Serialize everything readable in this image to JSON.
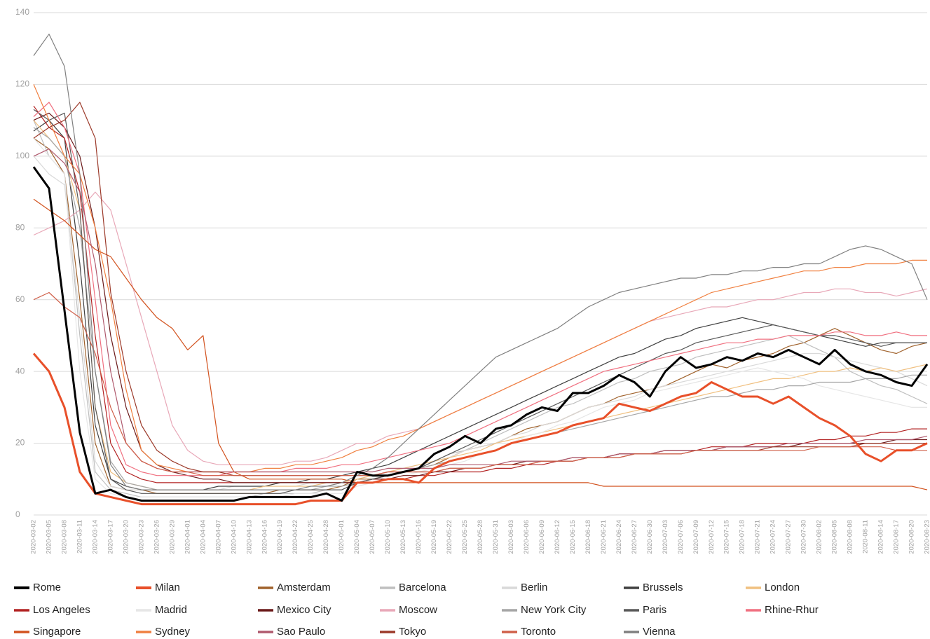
{
  "chart_data": {
    "type": "line",
    "categories": [
      "2020-03-02",
      "2020-03-05",
      "2020-03-08",
      "2020-03-11",
      "2020-03-14",
      "2020-03-17",
      "2020-03-20",
      "2020-03-23",
      "2020-03-26",
      "2020-03-29",
      "2020-04-01",
      "2020-04-04",
      "2020-04-07",
      "2020-04-10",
      "2020-04-13",
      "2020-04-16",
      "2020-04-19",
      "2020-04-22",
      "2020-04-25",
      "2020-04-28",
      "2020-05-01",
      "2020-05-04",
      "2020-05-07",
      "2020-05-10",
      "2020-05-13",
      "2020-05-16",
      "2020-05-19",
      "2020-05-22",
      "2020-05-25",
      "2020-05-28",
      "2020-05-31",
      "2020-06-03",
      "2020-06-06",
      "2020-06-09",
      "2020-06-12",
      "2020-06-15",
      "2020-06-18",
      "2020-06-21",
      "2020-06-24",
      "2020-06-27",
      "2020-06-30",
      "2020-07-03",
      "2020-07-06",
      "2020-07-09",
      "2020-07-12",
      "2020-07-15",
      "2020-07-18",
      "2020-07-21",
      "2020-07-24",
      "2020-07-27",
      "2020-07-30",
      "2020-08-02",
      "2020-08-05",
      "2020-08-08",
      "2020-08-11",
      "2020-08-14",
      "2020-08-17",
      "2020-08-20",
      "2020-08-23"
    ],
    "ylim": [
      0,
      140
    ],
    "yticks": [
      0,
      20,
      40,
      60,
      80,
      100,
      120,
      140
    ],
    "grid": true,
    "series": [
      {
        "name": "Rome",
        "color": "#000000",
        "width": 3,
        "values": [
          97,
          91,
          57,
          23,
          6,
          7,
          5,
          4,
          4,
          4,
          4,
          4,
          4,
          4,
          5,
          5,
          5,
          5,
          5,
          6,
          4,
          12,
          11,
          11,
          12,
          13,
          17,
          19,
          22,
          20,
          24,
          25,
          28,
          30,
          29,
          34,
          34,
          36,
          39,
          37,
          33,
          40,
          44,
          41,
          42,
          44,
          43,
          45,
          44,
          46,
          44,
          42,
          46,
          42,
          40,
          39,
          37,
          36,
          42
        ]
      },
      {
        "name": "Milan",
        "color": "#e8502a",
        "width": 3,
        "values": [
          45,
          40,
          30,
          12,
          6,
          5,
          4,
          3,
          3,
          3,
          3,
          3,
          3,
          3,
          3,
          3,
          3,
          3,
          4,
          4,
          4,
          9,
          9,
          10,
          10,
          9,
          13,
          15,
          16,
          17,
          18,
          20,
          21,
          22,
          23,
          25,
          26,
          27,
          31,
          30,
          29,
          31,
          33,
          34,
          37,
          35,
          33,
          33,
          31,
          33,
          30,
          27,
          25,
          22,
          17,
          15,
          18,
          18,
          20
        ]
      },
      {
        "name": "Amsterdam",
        "color": "#a0622c",
        "values": [
          105,
          102,
          95,
          60,
          20,
          8,
          7,
          7,
          6,
          6,
          6,
          6,
          6,
          6,
          6,
          6,
          7,
          7,
          7,
          7,
          8,
          10,
          10,
          11,
          12,
          13,
          14,
          16,
          18,
          19,
          20,
          22,
          24,
          25,
          26,
          28,
          30,
          31,
          33,
          34,
          35,
          36,
          38,
          40,
          42,
          41,
          43,
          44,
          45,
          47,
          48,
          50,
          52,
          50,
          48,
          46,
          45,
          47,
          48
        ]
      },
      {
        "name": "Barcelona",
        "color": "#bfbfbf",
        "values": [
          110,
          100,
          95,
          50,
          12,
          7,
          6,
          5,
          5,
          5,
          5,
          5,
          5,
          5,
          5,
          6,
          6,
          6,
          6,
          7,
          7,
          9,
          10,
          11,
          12,
          13,
          15,
          17,
          18,
          20,
          22,
          24,
          26,
          28,
          30,
          31,
          33,
          35,
          37,
          38,
          40,
          41,
          42,
          44,
          45,
          46,
          47,
          48,
          49,
          50,
          48,
          46,
          44,
          40,
          38,
          36,
          35,
          33,
          31
        ]
      },
      {
        "name": "Berlin",
        "color": "#d9d9d9",
        "values": [
          100,
          95,
          92,
          55,
          15,
          8,
          7,
          7,
          7,
          7,
          7,
          7,
          7,
          8,
          8,
          8,
          8,
          8,
          9,
          9,
          9,
          10,
          11,
          12,
          13,
          14,
          15,
          16,
          18,
          19,
          20,
          22,
          23,
          25,
          26,
          28,
          30,
          31,
          32,
          33,
          35,
          36,
          37,
          38,
          39,
          40,
          41,
          42,
          43,
          44,
          45,
          45,
          44,
          43,
          42,
          41,
          40,
          38,
          36
        ]
      },
      {
        "name": "Brussels",
        "color": "#404040",
        "values": [
          107,
          110,
          105,
          70,
          25,
          10,
          8,
          7,
          7,
          7,
          7,
          7,
          8,
          8,
          8,
          8,
          9,
          9,
          10,
          10,
          11,
          12,
          13,
          14,
          16,
          18,
          20,
          22,
          24,
          26,
          28,
          30,
          32,
          34,
          36,
          38,
          40,
          42,
          44,
          45,
          47,
          49,
          50,
          52,
          53,
          54,
          55,
          54,
          53,
          52,
          51,
          50,
          49,
          48,
          47,
          48,
          48,
          48,
          48
        ]
      },
      {
        "name": "London",
        "color": "#f0c080",
        "values": [
          110,
          105,
          100,
          85,
          30,
          12,
          9,
          8,
          7,
          7,
          7,
          7,
          7,
          7,
          7,
          8,
          8,
          8,
          8,
          9,
          9,
          10,
          11,
          12,
          13,
          14,
          15,
          16,
          17,
          18,
          20,
          21,
          22,
          23,
          24,
          25,
          26,
          27,
          28,
          29,
          30,
          31,
          32,
          33,
          34,
          35,
          36,
          37,
          38,
          38,
          39,
          40,
          40,
          41,
          40,
          41,
          40,
          41,
          42
        ]
      },
      {
        "name": "Los Angeles",
        "color": "#b22222",
        "values": [
          114,
          108,
          105,
          90,
          50,
          20,
          12,
          10,
          9,
          9,
          9,
          9,
          9,
          9,
          9,
          9,
          9,
          9,
          9,
          9,
          9,
          9,
          10,
          10,
          10,
          11,
          11,
          12,
          12,
          12,
          13,
          13,
          14,
          14,
          15,
          15,
          16,
          16,
          17,
          17,
          17,
          18,
          18,
          18,
          19,
          19,
          19,
          20,
          20,
          20,
          20,
          21,
          21,
          22,
          22,
          23,
          23,
          24,
          24
        ]
      },
      {
        "name": "Madrid",
        "color": "#e6e6e6",
        "values": [
          105,
          100,
          95,
          40,
          10,
          6,
          5,
          5,
          5,
          5,
          5,
          5,
          5,
          5,
          5,
          5,
          5,
          6,
          6,
          6,
          6,
          8,
          9,
          10,
          11,
          12,
          13,
          14,
          15,
          17,
          18,
          20,
          22,
          23,
          25,
          26,
          28,
          30,
          31,
          32,
          34,
          35,
          36,
          37,
          38,
          39,
          40,
          41,
          40,
          39,
          38,
          36,
          35,
          34,
          33,
          32,
          31,
          30,
          30
        ]
      },
      {
        "name": "Mexico City",
        "color": "#6b1a1a",
        "values": [
          110,
          112,
          108,
          100,
          80,
          50,
          30,
          18,
          14,
          12,
          11,
          10,
          10,
          9,
          9,
          9,
          9,
          9,
          9,
          9,
          9,
          9,
          10,
          10,
          11,
          11,
          12,
          12,
          13,
          13,
          14,
          14,
          15,
          15,
          15,
          16,
          16,
          16,
          17,
          17,
          17,
          18,
          18,
          18,
          18,
          19,
          19,
          19,
          19,
          19,
          20,
          20,
          20,
          20,
          20,
          20,
          21,
          21,
          21
        ]
      },
      {
        "name": "Moscow",
        "color": "#e8a8b8",
        "values": [
          78,
          80,
          82,
          85,
          90,
          85,
          70,
          55,
          40,
          25,
          18,
          15,
          14,
          14,
          14,
          14,
          14,
          15,
          15,
          16,
          18,
          20,
          20,
          22,
          23,
          24,
          26,
          28,
          30,
          32,
          34,
          36,
          38,
          40,
          42,
          44,
          46,
          48,
          50,
          52,
          54,
          55,
          56,
          57,
          58,
          58,
          59,
          60,
          60,
          61,
          62,
          62,
          63,
          63,
          62,
          62,
          61,
          62,
          63
        ]
      },
      {
        "name": "New York City",
        "color": "#a6a6a6",
        "values": [
          108,
          105,
          100,
          80,
          40,
          15,
          9,
          8,
          7,
          7,
          7,
          7,
          7,
          7,
          7,
          7,
          7,
          7,
          7,
          8,
          8,
          9,
          10,
          11,
          12,
          13,
          14,
          15,
          16,
          17,
          18,
          20,
          21,
          22,
          23,
          24,
          25,
          26,
          27,
          28,
          29,
          30,
          31,
          32,
          33,
          33,
          34,
          35,
          35,
          36,
          36,
          37,
          37,
          37,
          38,
          38,
          38,
          39,
          39
        ]
      },
      {
        "name": "Paris",
        "color": "#595959",
        "values": [
          113,
          110,
          112,
          85,
          30,
          10,
          7,
          6,
          6,
          6,
          6,
          6,
          6,
          6,
          6,
          6,
          6,
          7,
          7,
          7,
          7,
          9,
          10,
          11,
          12,
          13,
          15,
          17,
          19,
          21,
          23,
          25,
          27,
          29,
          31,
          33,
          35,
          37,
          39,
          41,
          43,
          45,
          46,
          48,
          49,
          50,
          51,
          52,
          53,
          52,
          51,
          50,
          50,
          49,
          48,
          47,
          48,
          48,
          48
        ]
      },
      {
        "name": "Rhine-Rhur",
        "color": "#f07080",
        "values": [
          111,
          115,
          108,
          95,
          60,
          25,
          14,
          12,
          11,
          11,
          11,
          11,
          11,
          12,
          12,
          12,
          12,
          13,
          13,
          13,
          14,
          14,
          15,
          16,
          17,
          18,
          19,
          20,
          22,
          24,
          26,
          28,
          30,
          32,
          34,
          36,
          38,
          40,
          41,
          42,
          43,
          44,
          45,
          46,
          47,
          48,
          48,
          49,
          49,
          50,
          50,
          50,
          51,
          51,
          50,
          50,
          51,
          50,
          50
        ]
      },
      {
        "name": "Singapore",
        "color": "#d2521e",
        "values": [
          88,
          85,
          82,
          78,
          74,
          72,
          66,
          60,
          55,
          52,
          46,
          50,
          20,
          12,
          10,
          10,
          10,
          10,
          10,
          10,
          10,
          9,
          9,
          9,
          9,
          9,
          9,
          9,
          9,
          9,
          9,
          9,
          9,
          9,
          9,
          9,
          9,
          8,
          8,
          8,
          8,
          8,
          8,
          8,
          8,
          8,
          8,
          8,
          8,
          8,
          8,
          8,
          8,
          8,
          8,
          8,
          8,
          8,
          7
        ]
      },
      {
        "name": "Sydney",
        "color": "#f08040",
        "values": [
          120,
          110,
          100,
          95,
          80,
          60,
          35,
          18,
          14,
          13,
          12,
          12,
          12,
          12,
          12,
          13,
          13,
          14,
          14,
          15,
          16,
          18,
          19,
          21,
          22,
          24,
          26,
          28,
          30,
          32,
          34,
          36,
          38,
          40,
          42,
          44,
          46,
          48,
          50,
          52,
          54,
          56,
          58,
          60,
          62,
          63,
          64,
          65,
          66,
          67,
          68,
          68,
          69,
          69,
          70,
          70,
          70,
          71,
          71
        ]
      },
      {
        "name": "Sao Paulo",
        "color": "#b05a6e",
        "values": [
          100,
          102,
          98,
          90,
          70,
          40,
          20,
          15,
          13,
          12,
          12,
          12,
          12,
          12,
          12,
          12,
          12,
          12,
          12,
          12,
          12,
          12,
          12,
          13,
          13,
          13,
          13,
          14,
          14,
          14,
          14,
          15,
          15,
          15,
          15,
          16,
          16,
          16,
          17,
          17,
          17,
          18,
          18,
          18,
          18,
          19,
          19,
          19,
          19,
          20,
          20,
          20,
          20,
          20,
          21,
          21,
          21,
          21,
          22
        ]
      },
      {
        "name": "Tokyo",
        "color": "#9c3a2a",
        "values": [
          105,
          108,
          110,
          115,
          105,
          62,
          40,
          25,
          18,
          15,
          13,
          12,
          12,
          11,
          11,
          11,
          11,
          11,
          11,
          11,
          11,
          11,
          11,
          12,
          12,
          12,
          12,
          13,
          13,
          13,
          14,
          14,
          14,
          15,
          15,
          15,
          16,
          16,
          16,
          17,
          17,
          17,
          17,
          18,
          18,
          18,
          18,
          18,
          19,
          19,
          19,
          19,
          19,
          19,
          20,
          20,
          20,
          20,
          20
        ]
      },
      {
        "name": "Toronto",
        "color": "#d0604a",
        "values": [
          60,
          62,
          58,
          55,
          45,
          30,
          20,
          15,
          13,
          12,
          12,
          11,
          11,
          11,
          11,
          11,
          11,
          11,
          11,
          11,
          11,
          11,
          11,
          12,
          12,
          12,
          12,
          13,
          13,
          13,
          14,
          14,
          14,
          15,
          15,
          15,
          16,
          16,
          16,
          17,
          17,
          17,
          17,
          18,
          18,
          18,
          18,
          18,
          18,
          18,
          18,
          19,
          19,
          19,
          19,
          19,
          18,
          18,
          18
        ]
      },
      {
        "name": "Vienna",
        "color": "#808080",
        "values": [
          128,
          134,
          125,
          95,
          40,
          14,
          8,
          7,
          7,
          7,
          7,
          7,
          7,
          7,
          7,
          7,
          7,
          7,
          8,
          8,
          9,
          11,
          13,
          16,
          20,
          24,
          28,
          32,
          36,
          40,
          44,
          46,
          48,
          50,
          52,
          55,
          58,
          60,
          62,
          63,
          64,
          65,
          66,
          66,
          67,
          67,
          68,
          68,
          69,
          69,
          70,
          70,
          72,
          74,
          75,
          74,
          72,
          70,
          60
        ]
      }
    ]
  }
}
